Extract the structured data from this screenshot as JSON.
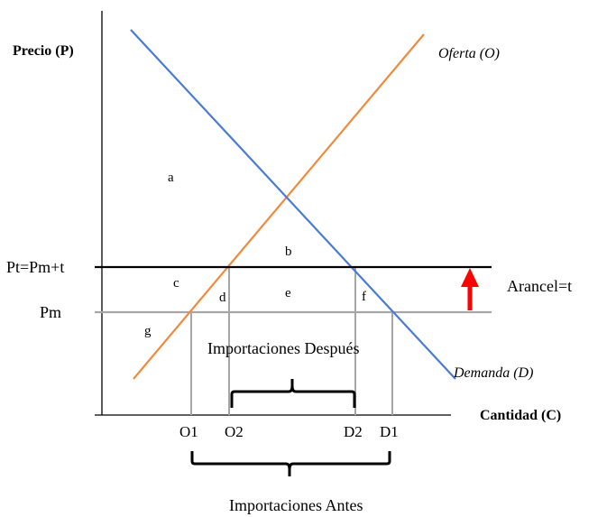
{
  "axes": {
    "y_label": "Precio (P)",
    "x_label": "Cantidad (C)"
  },
  "curves": {
    "supply": "Oferta (O)",
    "demand": "Demanda (D)"
  },
  "price_levels": {
    "tariff_price": "Pt=Pm+t",
    "world_price": "Pm"
  },
  "tariff_label": "Arancel=t",
  "areas": {
    "a": "a",
    "b": "b",
    "c": "c",
    "d": "d",
    "e": "e",
    "f": "f",
    "g": "g"
  },
  "quantities": {
    "o1": "O1",
    "o2": "O2",
    "d2": "D2",
    "d1": "D1"
  },
  "braces": {
    "after": "Importaciones Después",
    "before": "Importaciones Antes"
  },
  "colors": {
    "supply_line": "#f08a3c",
    "demand_line": "#4a7bd6",
    "tariff_arrow": "#ff0000",
    "world_price_line": "#a6a6a6",
    "guide_lines": "#a6a6a6",
    "axes": "#000000"
  }
}
